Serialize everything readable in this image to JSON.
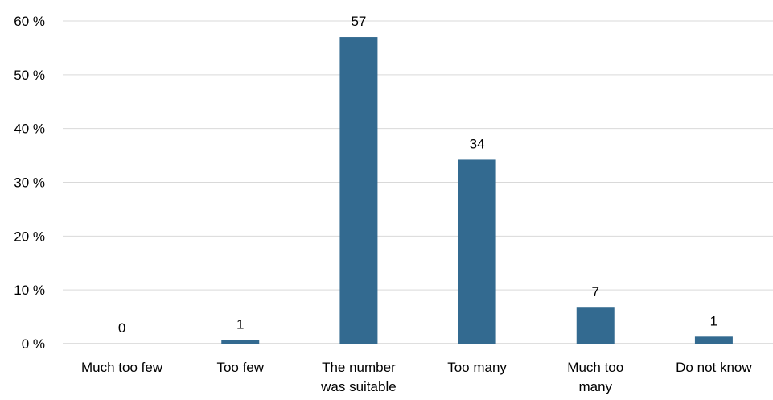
{
  "chart_data": {
    "type": "bar",
    "title": "",
    "xlabel": "",
    "ylabel": "",
    "categories": [
      [
        "Much too few"
      ],
      [
        "Too few"
      ],
      [
        "The number",
        "was suitable"
      ],
      [
        "Too many"
      ],
      [
        "Much too",
        "many"
      ],
      [
        "Do not know"
      ]
    ],
    "values": [
      0,
      1,
      57,
      34,
      7,
      1
    ],
    "bar_values": [
      0,
      0.7,
      57,
      34.2,
      6.7,
      1.3
    ],
    "data_labels": [
      "0",
      "1",
      "57",
      "34",
      "7",
      "1"
    ],
    "ylim": [
      0,
      60
    ],
    "y_ticks": [
      0,
      10,
      20,
      30,
      40,
      50,
      60
    ],
    "y_tick_labels": [
      "0 %",
      "10 %",
      "20 %",
      "30 %",
      "40 %",
      "50 %",
      "60 %"
    ],
    "grid": true,
    "legend": "none",
    "bar_color": "#336a90"
  }
}
